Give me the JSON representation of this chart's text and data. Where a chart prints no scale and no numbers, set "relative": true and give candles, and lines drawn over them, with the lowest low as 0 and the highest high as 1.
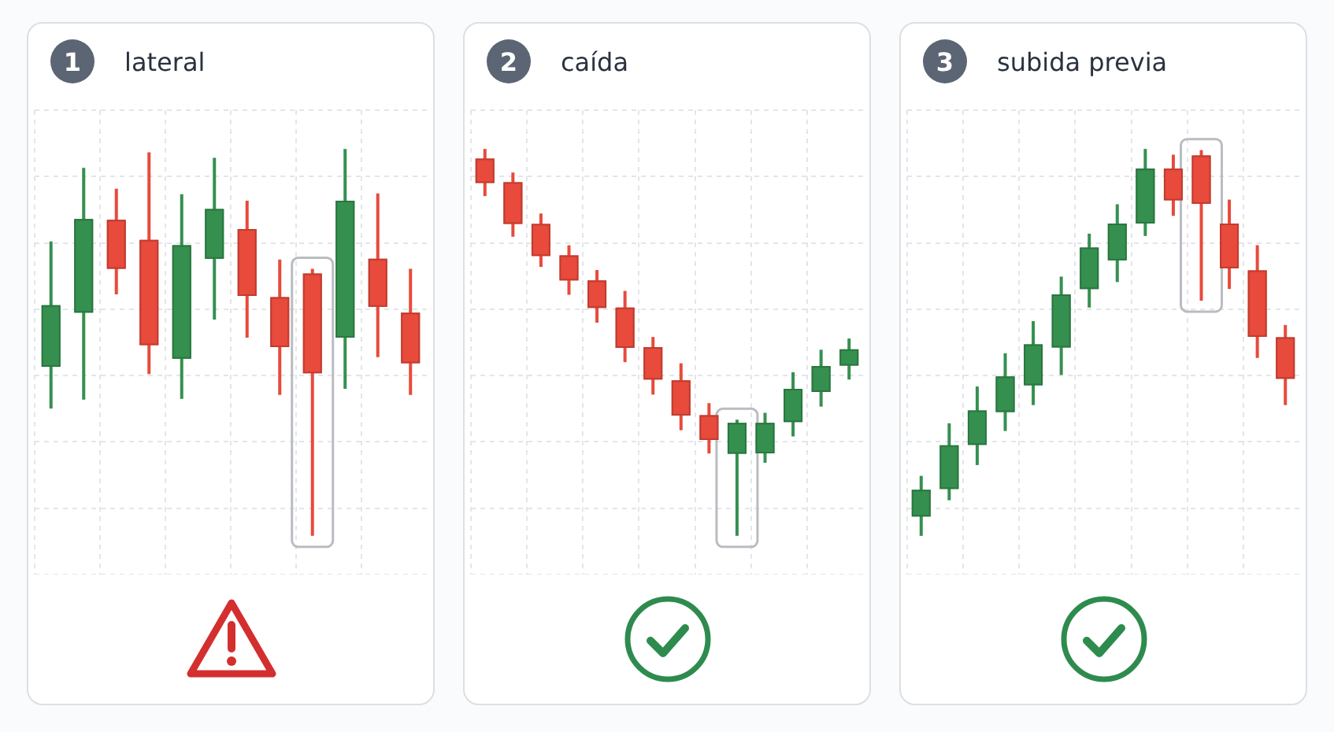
{
  "chart_data": [
    {
      "type": "candlestick",
      "title": "lateral",
      "annotations": [
        "1"
      ],
      "relative": true,
      "grid": true,
      "categories": [
        null,
        null,
        null,
        null,
        null,
        null,
        null,
        null,
        null,
        null,
        null,
        null
      ],
      "ohlc": [
        [
          0.437,
          0.761,
          0.329,
          0.596
        ],
        [
          0.577,
          0.951,
          0.352,
          0.819
        ],
        [
          0.817,
          0.897,
          0.624,
          0.69
        ],
        [
          0.765,
          0.991,
          0.418,
          0.493
        ],
        [
          0.458,
          0.883,
          0.354,
          0.751
        ],
        [
          0.716,
          0.977,
          0.559,
          0.845
        ],
        [
          0.793,
          0.866,
          0.512,
          0.62
        ],
        [
          0.617,
          0.714,
          0.364,
          0.488
        ],
        [
          0.678,
          0.69,
          0,
          0.42
        ],
        [
          0.512,
          1,
          0.38,
          0.866
        ],
        [
          0.716,
          0.885,
          0.462,
          0.592
        ],
        [
          0.577,
          0.69,
          0.364,
          0.446
        ]
      ],
      "colors": [
        "#35904f",
        "#35904f",
        "#e84a3b",
        "#e84a3b",
        "#35904f",
        "#35904f",
        "#e84a3b",
        "#e84a3b",
        "#e84a3b",
        "#35904f",
        "#e84a3b",
        "#e84a3b"
      ]
    },
    {
      "type": "candlestick",
      "title": "caída",
      "annotations": [
        "2"
      ],
      "relative": true,
      "grid": true,
      "categories": [
        null,
        null,
        null,
        null,
        null,
        null,
        null,
        null,
        null,
        null,
        null,
        null,
        null,
        null
      ],
      "ohlc": [
        [
          0.975,
          1,
          0.878,
          0.912
        ],
        [
          0.914,
          0.939,
          0.773,
          0.806
        ],
        [
          0.806,
          0.833,
          0.695,
          0.723
        ],
        [
          0.725,
          0.751,
          0.623,
          0.66
        ],
        [
          0.66,
          0.687,
          0.551,
          0.589
        ],
        [
          0.59,
          0.633,
          0.449,
          0.486
        ],
        [
          0.488,
          0.514,
          0.365,
          0.404
        ],
        [
          0.402,
          0.446,
          0.273,
          0.311
        ],
        [
          0.312,
          0.343,
          0.213,
          0.248
        ],
        [
          0.212,
          0.3,
          0,
          0.292
        ],
        [
          0.213,
          0.318,
          0.189,
          0.292
        ],
        [
          0.294,
          0.423,
          0.257,
          0.38
        ],
        [
          0.372,
          0.481,
          0.334,
          0.439
        ],
        [
          0.44,
          0.51,
          0.404,
          0.482
        ]
      ],
      "colors": [
        "#e84a3b",
        "#e84a3b",
        "#e84a3b",
        "#e84a3b",
        "#e84a3b",
        "#e84a3b",
        "#e84a3b",
        "#e84a3b",
        "#e84a3b",
        "#35904f",
        "#35904f",
        "#35904f",
        "#35904f",
        "#35904f"
      ]
    },
    {
      "type": "candlestick",
      "title": "subida previa",
      "annotations": [
        "3"
      ],
      "relative": true,
      "grid": true,
      "categories": [
        null,
        null,
        null,
        null,
        null,
        null,
        null,
        null,
        null,
        null,
        null,
        null,
        null,
        null
      ],
      "ohlc": [
        [
          0.05,
          0.155,
          0,
          0.119
        ],
        [
          0.121,
          0.291,
          0.092,
          0.234
        ],
        [
          0.235,
          0.386,
          0.183,
          0.324
        ],
        [
          0.32,
          0.472,
          0.271,
          0.412
        ],
        [
          0.389,
          0.555,
          0.338,
          0.495
        ],
        [
          0.487,
          0.67,
          0.416,
          0.624
        ],
        [
          0.638,
          0.781,
          0.59,
          0.745
        ],
        [
          0.712,
          0.857,
          0.656,
          0.807
        ],
        [
          0.807,
          1,
          0.775,
          0.949
        ],
        [
          0.949,
          0.985,
          0.827,
          0.867
        ],
        [
          0.983,
          0.997,
          0.608,
          0.858
        ],
        [
          0.807,
          0.869,
          0.638,
          0.691
        ],
        [
          0.686,
          0.751,
          0.46,
          0.514
        ],
        [
          0.513,
          0.545,
          0.338,
          0.406
        ]
      ],
      "colors": [
        "#35904f",
        "#35904f",
        "#35904f",
        "#35904f",
        "#35904f",
        "#35904f",
        "#35904f",
        "#35904f",
        "#35904f",
        "#e84a3b",
        "#e84a3b",
        "#e84a3b",
        "#e84a3b",
        "#e84a3b"
      ]
    }
  ]
}
